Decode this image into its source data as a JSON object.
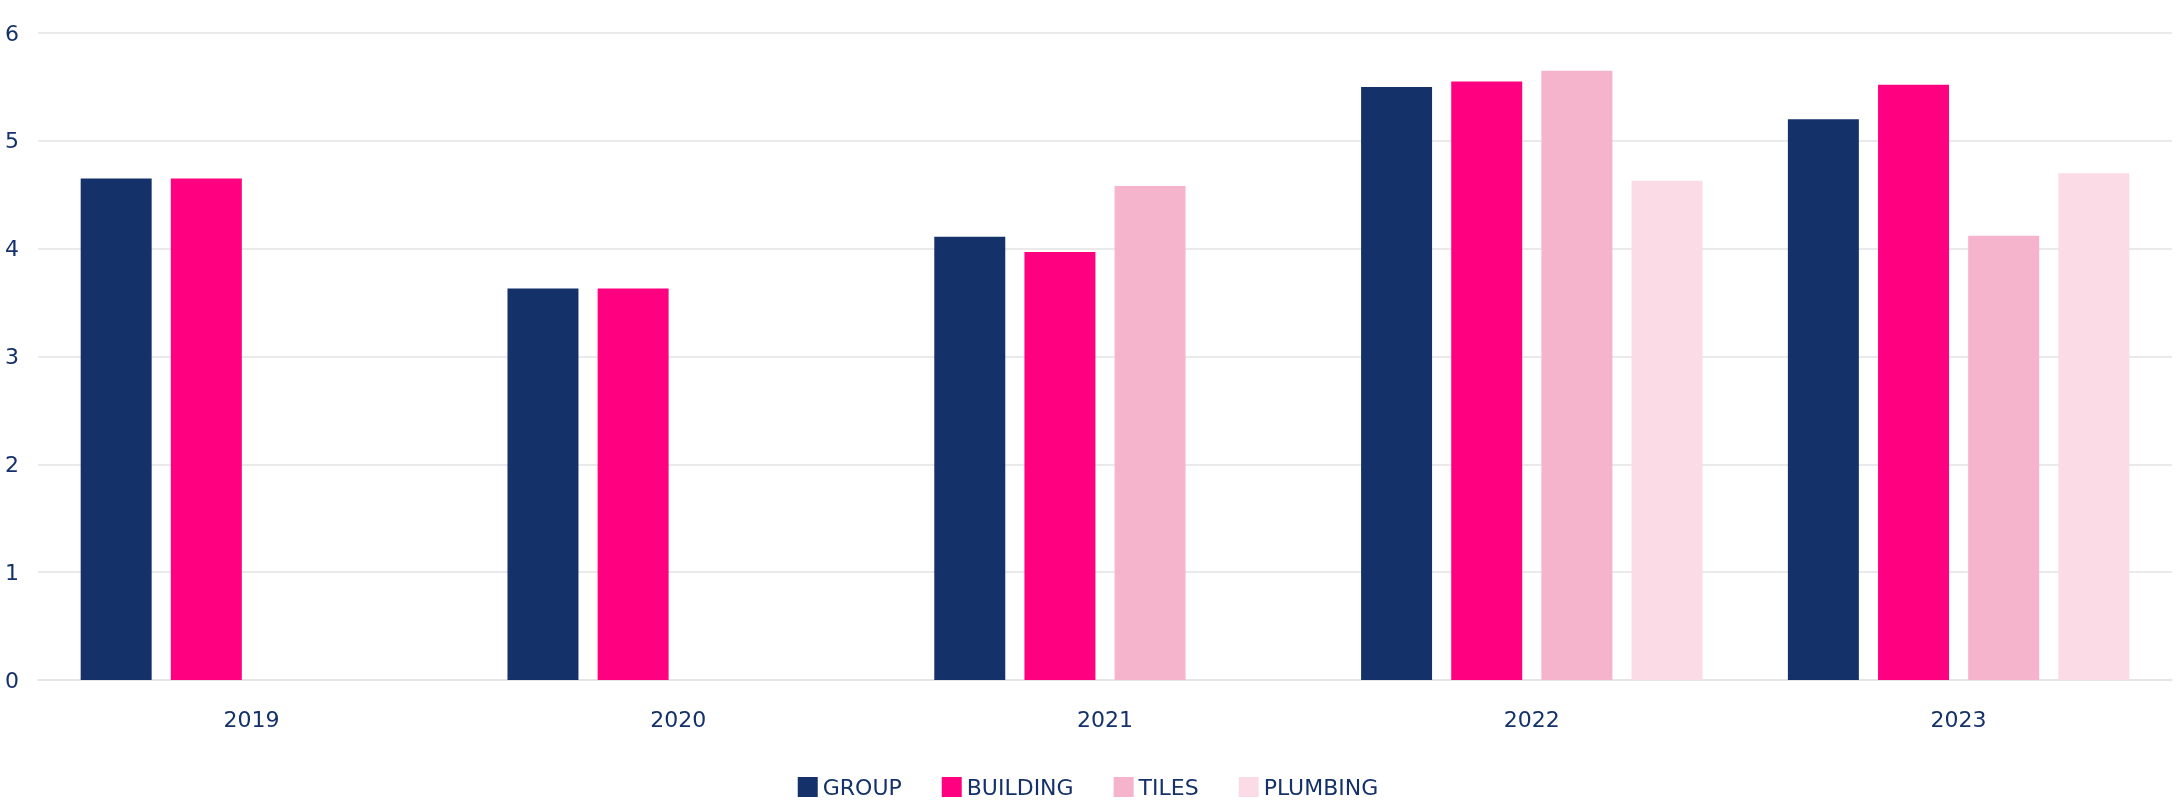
{
  "chart_data": {
    "type": "bar",
    "categories": [
      "2019",
      "2020",
      "2021",
      "2022",
      "2023"
    ],
    "series": [
      {
        "name": "GROUP",
        "color": "#14316a",
        "values": [
          4.65,
          3.63,
          4.11,
          5.5,
          5.2
        ]
      },
      {
        "name": "BUILDING",
        "color": "#ff0080",
        "values": [
          4.65,
          3.63,
          3.97,
          5.55,
          5.52
        ]
      },
      {
        "name": "TILES",
        "color": "#f5b3cc",
        "values": [
          null,
          null,
          4.58,
          5.65,
          4.12
        ]
      },
      {
        "name": "PLUMBING",
        "color": "#fadbe6",
        "values": [
          null,
          null,
          null,
          4.63,
          4.7
        ]
      }
    ],
    "ylim": [
      0,
      6
    ],
    "yticks": [
      0,
      1,
      2,
      3,
      4,
      5,
      6
    ],
    "grid": "y",
    "legend": "bottom"
  }
}
